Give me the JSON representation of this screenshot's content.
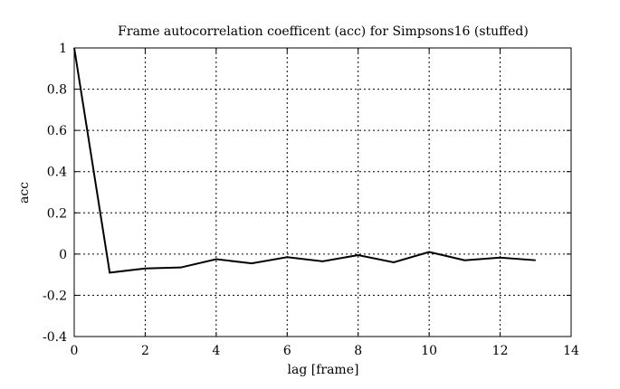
{
  "chart_data": {
    "type": "line",
    "title": "Frame autocorrelation coefficent (acc) for Simpsons16 (stuffed)",
    "xlabel": "lag [frame]",
    "ylabel": "acc",
    "xlim": [
      0,
      14
    ],
    "ylim": [
      -0.4,
      1
    ],
    "xticks": [
      0,
      2,
      4,
      6,
      8,
      10,
      12,
      14
    ],
    "yticks": [
      -0.4,
      -0.2,
      0,
      0.2,
      0.4,
      0.6,
      0.8,
      1
    ],
    "xtick_labels": [
      "0",
      "2",
      "4",
      "6",
      "8",
      "10",
      "12",
      "14"
    ],
    "ytick_labels": [
      "-0.4",
      "-0.2",
      "0",
      "0.2",
      "0.4",
      "0.6",
      "0.8",
      "1"
    ],
    "grid": true,
    "series": [
      {
        "color": "#000000",
        "x": [
          0,
          1,
          2,
          3,
          4,
          5,
          6,
          7,
          8,
          9,
          10,
          11,
          12,
          13
        ],
        "y": [
          1.0,
          -0.09,
          -0.07,
          -0.065,
          -0.025,
          -0.045,
          -0.015,
          -0.035,
          -0.005,
          -0.04,
          0.01,
          -0.03,
          -0.017,
          -0.03
        ]
      }
    ]
  }
}
